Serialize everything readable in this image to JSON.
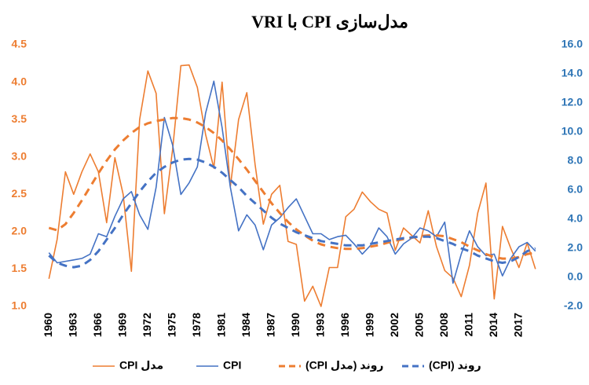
{
  "chart_data": {
    "type": "line",
    "title": "مدل‌سازی CPI با VRI",
    "categories": [
      "1960",
      null,
      null,
      "1963",
      null,
      null,
      "1966",
      null,
      null,
      "1969",
      null,
      null,
      "1972",
      null,
      null,
      "1975",
      null,
      null,
      "1978",
      null,
      null,
      "1981",
      null,
      null,
      "1984",
      null,
      null,
      "1987",
      null,
      null,
      "1990",
      null,
      null,
      "1993",
      null,
      null,
      "1996",
      null,
      null,
      "1999",
      null,
      null,
      "2002",
      null,
      null,
      "2005",
      null,
      null,
      "2008",
      null,
      null,
      "2011",
      null,
      null,
      "2014",
      null,
      null,
      "2017",
      null,
      null
    ],
    "ylim": [
      1.0,
      4.5
    ],
    "yticks": [
      {
        "value": 1.0,
        "label": "1.0"
      },
      {
        "value": 1.5,
        "label": "1.5"
      },
      {
        "value": 2.0,
        "label": "2.0"
      },
      {
        "value": 2.5,
        "label": "2.5"
      },
      {
        "value": 3.0,
        "label": "3.0"
      },
      {
        "value": 3.5,
        "label": "3.5"
      },
      {
        "value": 4.0,
        "label": "4.0"
      },
      {
        "value": 4.5,
        "label": "4.5"
      }
    ],
    "y2lim": [
      -2.0,
      16.0
    ],
    "y2ticks": [
      {
        "value": -2.0,
        "label": "-2.0"
      },
      {
        "value": 0,
        "label": "0.0"
      },
      {
        "value": 2,
        "label": "2.0"
      },
      {
        "value": 4,
        "label": "4.0"
      },
      {
        "value": 6,
        "label": "6.0"
      },
      {
        "value": 8,
        "label": "8.0"
      },
      {
        "value": 10,
        "label": "10.0"
      },
      {
        "value": 12,
        "label": "12.0"
      },
      {
        "value": 14,
        "label": "14.0"
      },
      {
        "value": 16,
        "label": "16.0"
      }
    ],
    "ytick_color": "#ED7D31",
    "y2tick_color": "#2E75B6",
    "legend": "bottom",
    "series": [
      {
        "name": "مدل CPI",
        "color": "#ED7D31",
        "dashed": false,
        "values": [
          1.37,
          1.9,
          2.8,
          2.5,
          2.8,
          3.04,
          2.8,
          2.12,
          2.99,
          2.5,
          1.47,
          3.5,
          4.15,
          3.85,
          2.24,
          3.1,
          4.22,
          4.23,
          3.93,
          3.3,
          2.85,
          4.0,
          2.6,
          3.5,
          3.86,
          2.9,
          2.1,
          2.5,
          2.62,
          1.87,
          1.83,
          1.07,
          1.27,
          1.0,
          1.52,
          1.52,
          2.2,
          2.3,
          2.53,
          2.4,
          2.3,
          2.25,
          1.75,
          2.05,
          1.95,
          1.85,
          2.28,
          1.8,
          1.48,
          1.38,
          1.13,
          1.55,
          2.25,
          2.65,
          1.1,
          2.07,
          1.78,
          1.52,
          1.85,
          1.5
        ]
      },
      {
        "name": "CPI",
        "color": "#4472C4",
        "axis": "y2",
        "dashed": false,
        "values": [
          1.7,
          1.0,
          1.1,
          1.2,
          1.3,
          1.6,
          3.0,
          2.8,
          4.2,
          5.4,
          5.9,
          4.3,
          3.3,
          6.2,
          11.0,
          9.1,
          5.7,
          6.5,
          7.6,
          11.3,
          13.5,
          10.3,
          6.2,
          3.2,
          4.3,
          3.6,
          1.9,
          3.6,
          4.1,
          4.8,
          5.4,
          4.2,
          3.0,
          3.0,
          2.6,
          2.8,
          2.9,
          2.3,
          1.6,
          2.2,
          3.4,
          2.8,
          1.6,
          2.3,
          2.7,
          3.4,
          3.2,
          2.8,
          3.8,
          -0.4,
          1.6,
          3.2,
          2.1,
          1.5,
          1.6,
          0.1,
          1.3,
          2.1,
          2.4,
          1.8
        ]
      },
      {
        "name": "روند (مدل CPI)",
        "color": "#ED7D31",
        "dashed": true,
        "values": [
          2.05,
          2.02,
          2.1,
          2.25,
          2.42,
          2.6,
          2.78,
          2.95,
          3.1,
          3.22,
          3.32,
          3.4,
          3.45,
          3.48,
          3.5,
          3.52,
          3.52,
          3.5,
          3.46,
          3.4,
          3.32,
          3.22,
          3.1,
          2.97,
          2.83,
          2.68,
          2.53,
          2.38,
          2.25,
          2.13,
          2.03,
          1.95,
          1.88,
          1.83,
          1.8,
          1.78,
          1.77,
          1.77,
          1.78,
          1.8,
          1.82,
          1.85,
          1.88,
          1.9,
          1.92,
          1.94,
          1.95,
          1.95,
          1.94,
          1.9,
          1.86,
          1.8,
          1.75,
          1.7,
          1.66,
          1.64,
          1.64,
          1.66,
          1.7,
          1.72
        ]
      },
      {
        "name": "روند (CPI)",
        "color": "#4472C4",
        "axis": "y2",
        "dashed": true,
        "values": [
          1.5,
          1.0,
          0.8,
          0.7,
          0.8,
          1.2,
          1.8,
          2.6,
          3.4,
          4.3,
          5.1,
          5.9,
          6.6,
          7.2,
          7.6,
          7.9,
          8.1,
          8.15,
          8.1,
          7.9,
          7.6,
          7.2,
          6.7,
          6.2,
          5.6,
          5.1,
          4.6,
          4.1,
          3.7,
          3.4,
          3.1,
          2.9,
          2.7,
          2.5,
          2.4,
          2.3,
          2.2,
          2.2,
          2.2,
          2.3,
          2.4,
          2.5,
          2.6,
          2.7,
          2.75,
          2.8,
          2.8,
          2.7,
          2.5,
          2.3,
          2.0,
          1.8,
          1.5,
          1.3,
          1.1,
          1.0,
          1.1,
          1.4,
          1.8,
          2.0
        ]
      }
    ]
  }
}
